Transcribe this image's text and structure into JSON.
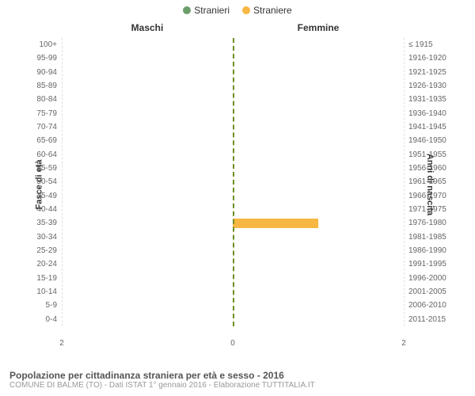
{
  "legend": {
    "male_label": "Stranieri",
    "female_label": "Straniere",
    "male_color": "#6b9e6b",
    "female_color": "#f7b742"
  },
  "column_headers": {
    "left": "Maschi",
    "right": "Femmine"
  },
  "axis_labels": {
    "left": "Fasce di età",
    "right": "Anni di nascita"
  },
  "chart": {
    "type": "population-pyramid",
    "background_color": "#ffffff",
    "grid_color": "#e0e0e0",
    "centerline_color": "#6b8e23",
    "tick_color": "#666666",
    "tick_fontsize": 10,
    "x_max": 2,
    "x_ticks_left": [
      2
    ],
    "x_ticks_right": [
      2
    ],
    "age_groups": [
      {
        "age": "100+",
        "birth": "≤ 1915",
        "male": 0,
        "female": 0
      },
      {
        "age": "95-99",
        "birth": "1916-1920",
        "male": 0,
        "female": 0
      },
      {
        "age": "90-94",
        "birth": "1921-1925",
        "male": 0,
        "female": 0
      },
      {
        "age": "85-89",
        "birth": "1926-1930",
        "male": 0,
        "female": 0
      },
      {
        "age": "80-84",
        "birth": "1931-1935",
        "male": 0,
        "female": 0
      },
      {
        "age": "75-79",
        "birth": "1936-1940",
        "male": 0,
        "female": 0
      },
      {
        "age": "70-74",
        "birth": "1941-1945",
        "male": 0,
        "female": 0
      },
      {
        "age": "65-69",
        "birth": "1946-1950",
        "male": 0,
        "female": 0
      },
      {
        "age": "60-64",
        "birth": "1951-1955",
        "male": 0,
        "female": 0
      },
      {
        "age": "55-59",
        "birth": "1956-1960",
        "male": 0,
        "female": 0
      },
      {
        "age": "50-54",
        "birth": "1961-1965",
        "male": 0,
        "female": 0
      },
      {
        "age": "45-49",
        "birth": "1966-1970",
        "male": 0,
        "female": 0
      },
      {
        "age": "40-44",
        "birth": "1971-1975",
        "male": 0,
        "female": 0
      },
      {
        "age": "35-39",
        "birth": "1976-1980",
        "male": 0,
        "female": 1
      },
      {
        "age": "30-34",
        "birth": "1981-1985",
        "male": 0,
        "female": 0
      },
      {
        "age": "25-29",
        "birth": "1986-1990",
        "male": 0,
        "female": 0
      },
      {
        "age": "20-24",
        "birth": "1991-1995",
        "male": 0,
        "female": 0
      },
      {
        "age": "15-19",
        "birth": "1996-2000",
        "male": 0,
        "female": 0
      },
      {
        "age": "10-14",
        "birth": "2001-2005",
        "male": 0,
        "female": 0
      },
      {
        "age": "5-9",
        "birth": "2006-2010",
        "male": 0,
        "female": 0
      },
      {
        "age": "0-4",
        "birth": "2011-2015",
        "male": 0,
        "female": 0
      }
    ]
  },
  "footer": {
    "title": "Popolazione per cittadinanza straniera per età e sesso - 2016",
    "subtitle": "COMUNE DI BALME (TO) - Dati ISTAT 1° gennaio 2016 - Elaborazione TUTTITALIA.IT",
    "title_color": "#555555",
    "subtitle_color": "#999999"
  }
}
